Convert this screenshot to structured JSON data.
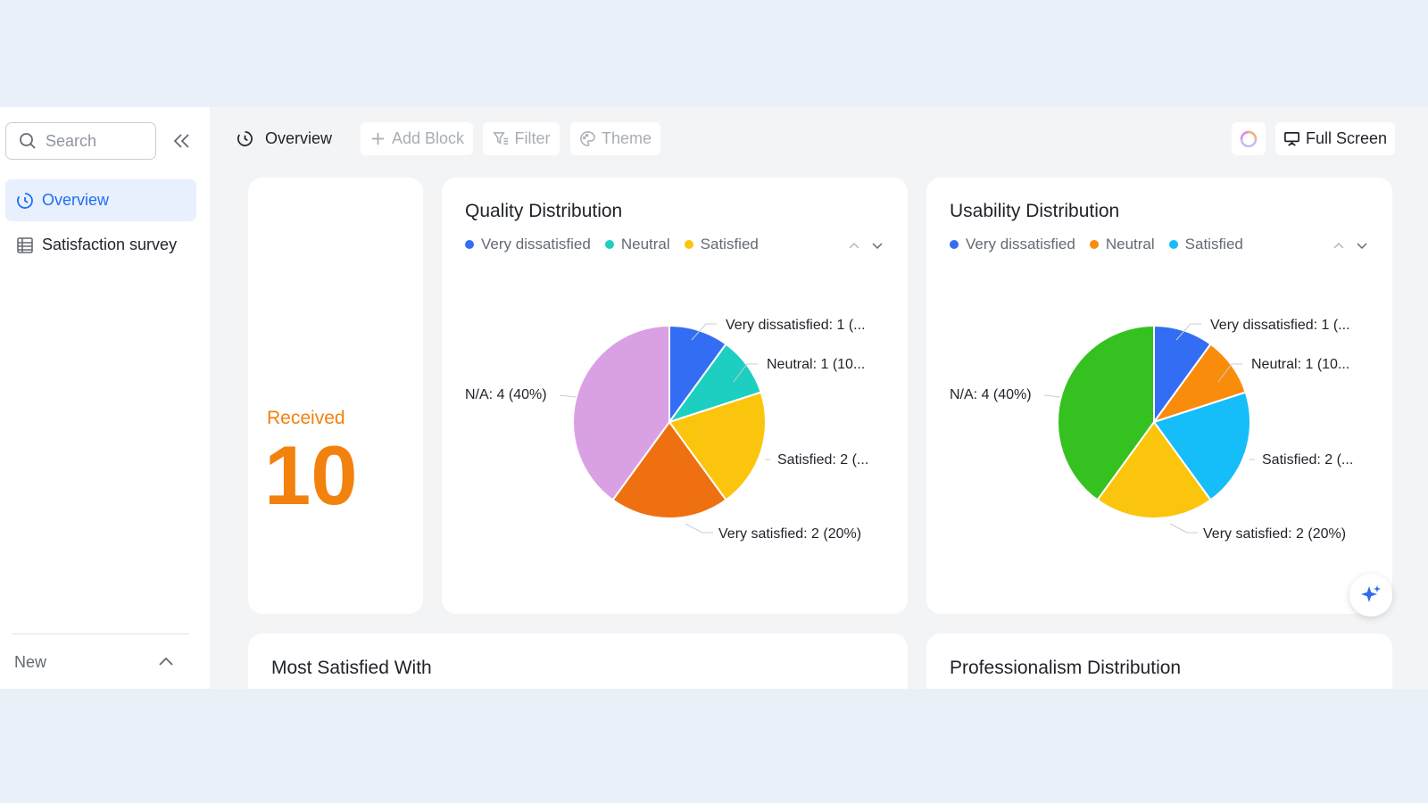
{
  "sidebar": {
    "search_placeholder": "Search",
    "items": [
      {
        "label": "Overview",
        "icon": "clock-dashboard-icon",
        "active": true
      },
      {
        "label": "Satisfaction survey",
        "icon": "table-icon",
        "active": false
      }
    ],
    "footer_label": "New"
  },
  "toolbar": {
    "overview_label": "Overview",
    "add_block_label": "Add Block",
    "filter_label": "Filter",
    "theme_label": "Theme",
    "fullscreen_label": "Full Screen"
  },
  "received": {
    "label": "Received",
    "value": "10"
  },
  "colors": {
    "accent": "#1f6ff2",
    "orange": "#f2810d",
    "blue": "#336df4",
    "teal": "#1ccfc0",
    "yellow": "#fcc50d",
    "dark_orange": "#ef7010",
    "violet": "#daa0e4",
    "green": "#35c11f",
    "light_blue": "#15bdf9",
    "amber": "#fa8c0c"
  },
  "charts": [
    {
      "title": "Quality Distribution",
      "legend": [
        {
          "label": "Very dissatisfied",
          "color": "#336df4"
        },
        {
          "label": "Neutral",
          "color": "#1ccfc0"
        },
        {
          "label": "Satisfied",
          "color": "#fcc50d"
        }
      ],
      "slice_labels": [
        "Very dissatisfied: 1 (...",
        "Neutral: 1 (10...",
        "Satisfied: 2 (...",
        "Very satisfied: 2 (20%)",
        "N/A: 4 (40%)"
      ]
    },
    {
      "title": "Usability Distribution",
      "legend": [
        {
          "label": "Very dissatisfied",
          "color": "#336df4"
        },
        {
          "label": "Neutral",
          "color": "#fa8c0c"
        },
        {
          "label": "Satisfied",
          "color": "#15bdf9"
        }
      ],
      "slice_labels": [
        "Very dissatisfied: 1 (...",
        "Neutral: 1 (10...",
        "Satisfied: 2 (...",
        "Very satisfied: 2 (20%)",
        "N/A: 4 (40%)"
      ]
    }
  ],
  "chart_data": [
    {
      "type": "pie",
      "title": "Quality Distribution",
      "categories": [
        "Very dissatisfied",
        "Neutral",
        "Satisfied",
        "Very satisfied",
        "N/A"
      ],
      "values": [
        1,
        1,
        2,
        2,
        4
      ],
      "colors": [
        "#336df4",
        "#1ccfc0",
        "#fcc50d",
        "#ef7010",
        "#daa0e4"
      ]
    },
    {
      "type": "pie",
      "title": "Usability Distribution",
      "categories": [
        "Very dissatisfied",
        "Neutral",
        "Satisfied",
        "Very satisfied",
        "N/A"
      ],
      "values": [
        1,
        1,
        2,
        2,
        4
      ],
      "colors": [
        "#336df4",
        "#fa8c0c",
        "#15bdf9",
        "#fcc50d",
        "#35c11f"
      ]
    }
  ],
  "bottom_cards": {
    "most_satisfied_title": "Most Satisfied With",
    "professionalism_title": "Professionalism Distribution"
  }
}
